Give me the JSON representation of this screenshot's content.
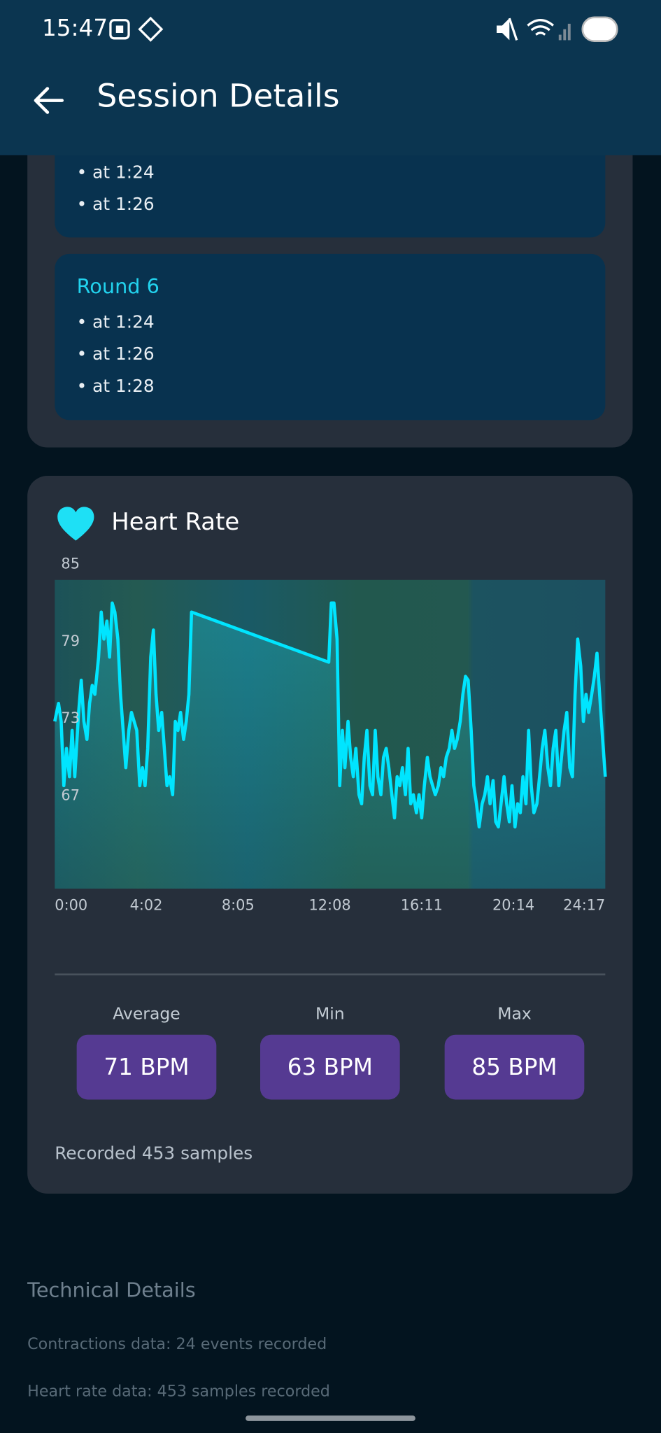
{
  "status_bar": {
    "time": "15:47"
  },
  "app_bar": {
    "title": "Session Details"
  },
  "rounds": [
    {
      "items": [
        "• at 1:24",
        "• at 1:26"
      ]
    },
    {
      "title": "Round 6",
      "items": [
        "• at 1:24",
        "• at 1:26",
        "• at 1:28"
      ]
    }
  ],
  "heart_rate": {
    "title": "Heart Rate",
    "stats": [
      {
        "label": "Average",
        "value": "71 BPM"
      },
      {
        "label": "Min",
        "value": "63 BPM"
      },
      {
        "label": "Max",
        "value": "85 BPM"
      }
    ],
    "summary": "Recorded 453 samples"
  },
  "chart_data": {
    "type": "line",
    "color": "#00e5ff",
    "xlim": [
      0,
      1457
    ],
    "xticks": [
      {
        "value": 0,
        "label": "0:00"
      },
      {
        "value": 242,
        "label": "4:02"
      },
      {
        "value": 485,
        "label": "8:05"
      },
      {
        "value": 728,
        "label": "12:08"
      },
      {
        "value": 971,
        "label": "16:11"
      },
      {
        "value": 1214,
        "label": "20:14"
      },
      {
        "value": 1457,
        "label": "24:17"
      }
    ],
    "ylim": [
      61,
      85
    ],
    "yticks": [
      85,
      79,
      73,
      67
    ],
    "x": [
      0,
      10,
      17,
      24,
      31,
      39,
      46,
      53,
      63,
      70,
      77,
      85,
      92,
      99,
      106,
      116,
      123,
      130,
      138,
      145,
      152,
      159,
      167,
      174,
      181,
      188,
      196,
      203,
      210,
      217,
      225,
      232,
      239,
      246,
      254,
      261,
      268,
      275,
      283,
      290,
      297,
      304,
      312,
      319,
      326,
      333,
      341,
      348,
      355,
      362,
      725,
      732,
      739,
      747,
      754,
      761,
      768,
      776,
      783,
      790,
      797,
      805,
      812,
      819,
      826,
      834,
      841,
      848,
      855,
      863,
      870,
      877,
      884,
      892,
      899,
      906,
      913,
      920,
      928,
      935,
      942,
      949,
      957,
      964,
      971,
      978,
      986,
      993,
      1000,
      1007,
      1015,
      1022,
      1029,
      1036,
      1044,
      1051,
      1058,
      1065,
      1073,
      1080,
      1087,
      1094,
      1102,
      1109,
      1116,
      1123,
      1131,
      1138,
      1145,
      1152,
      1160,
      1167,
      1174,
      1181,
      1189,
      1196,
      1203,
      1210,
      1218,
      1225,
      1232,
      1239,
      1247,
      1254,
      1261,
      1268,
      1276,
      1283,
      1290,
      1297,
      1305,
      1312,
      1319,
      1326,
      1334,
      1341,
      1348,
      1355,
      1363,
      1370,
      1377,
      1384,
      1392,
      1399,
      1406,
      1413,
      1421,
      1428,
      1435,
      1442,
      1450,
      1457
    ],
    "values": [
      74.0,
      75.4,
      74.0,
      69.0,
      71.9,
      69.7,
      73.3,
      69.7,
      74.7,
      77.2,
      74.0,
      72.6,
      75.4,
      76.8,
      76.1,
      79.0,
      82.5,
      80.4,
      81.8,
      79.0,
      83.2,
      82.5,
      80.4,
      76.1,
      73.3,
      70.4,
      73.3,
      74.7,
      74.0,
      73.3,
      69.0,
      70.4,
      69.0,
      71.9,
      79.0,
      81.1,
      76.1,
      73.3,
      74.7,
      71.9,
      69.0,
      69.7,
      68.3,
      74.0,
      73.3,
      74.7,
      72.6,
      74.0,
      76.1,
      82.5,
      78.6,
      83.2,
      83.2,
      80.4,
      69.0,
      73.3,
      70.4,
      74.0,
      71.2,
      69.7,
      71.9,
      68.3,
      67.6,
      71.2,
      73.3,
      69.0,
      68.3,
      73.3,
      69.7,
      68.3,
      71.2,
      71.9,
      70.4,
      68.3,
      66.5,
      69.7,
      69.0,
      70.4,
      68.3,
      71.9,
      67.6,
      68.3,
      66.9,
      68.3,
      66.5,
      69.0,
      71.2,
      69.7,
      69.0,
      68.3,
      69.0,
      70.4,
      69.7,
      71.2,
      71.9,
      73.3,
      71.9,
      72.6,
      74.0,
      76.1,
      77.5,
      77.2,
      73.3,
      69.0,
      67.6,
      65.8,
      67.6,
      68.3,
      69.7,
      67.6,
      69.4,
      66.2,
      65.8,
      67.6,
      69.7,
      67.6,
      66.2,
      69.0,
      65.8,
      67.6,
      66.9,
      69.7,
      67.6,
      73.3,
      69.0,
      66.9,
      67.6,
      69.7,
      71.9,
      73.3,
      70.4,
      69.0,
      71.9,
      73.3,
      69.0,
      71.2,
      73.3,
      74.7,
      70.4,
      69.7,
      76.1,
      80.4,
      78.3,
      74.0,
      76.1,
      74.7,
      76.1,
      77.5,
      79.3,
      76.1,
      72.6,
      69.7
    ]
  },
  "technical_details": {
    "title": "Technical Details",
    "lines": [
      "Contractions data: 24 events recorded",
      "Heart rate data: 453 samples recorded"
    ]
  }
}
